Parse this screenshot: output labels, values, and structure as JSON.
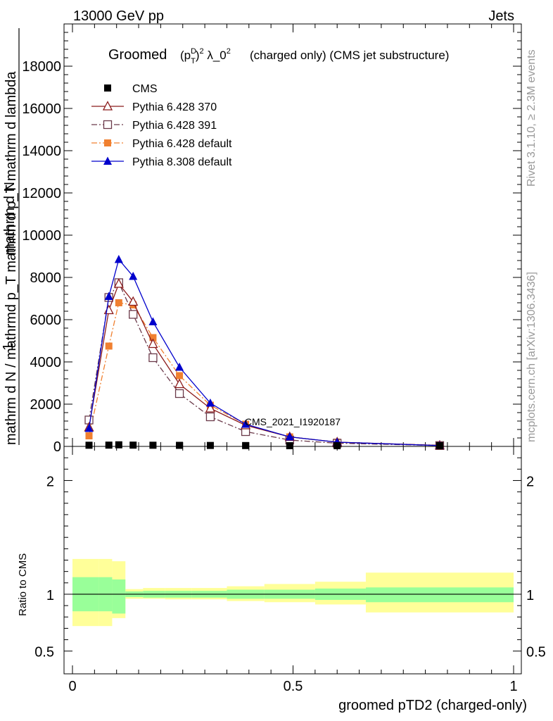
{
  "header": {
    "left": "13000 GeV pp",
    "right": "Jets"
  },
  "side_labels": {
    "rivet": "Rivet 3.1.10, ≥ 2.3M events",
    "mcplots": "mcplots.cern.ch [arXiv:1306.3436]"
  },
  "watermark": "CMS_2021_I1920187",
  "colors": {
    "cms": "#000000",
    "p370": "#8b1a1a",
    "p391": "#6b3a4a",
    "p6def": "#f08030",
    "p8def": "#0000cc",
    "band_inner": "#99ff99",
    "band_outer": "#ffff99"
  },
  "chart_data": [
    {
      "type": "line",
      "title_prefix": "Groomed",
      "title_suffix": "(charged only) (CMS jet substructure)",
      "ylabel_top": "mathrm d N",
      "ylabel_fraction_bottom": "mathrm d N / mathrmd p_T mathrm d p_T mathrm d lambda",
      "ylabel_one": "1",
      "ylim": [
        0,
        20000
      ],
      "xlim": [
        0,
        1
      ],
      "yticks": [
        0,
        2000,
        4000,
        6000,
        8000,
        10000,
        12000,
        14000,
        16000,
        18000
      ],
      "ytick_labels": [
        "0",
        "2000",
        "4000",
        "6000",
        "8000",
        "10000",
        "12000",
        "14000",
        "16000",
        "18000"
      ],
      "x": [
        0.0375,
        0.0825,
        0.105,
        0.1375,
        0.1825,
        0.2425,
        0.3125,
        0.3925,
        0.4925,
        0.6,
        0.8325
      ],
      "series": [
        {
          "name": "CMS",
          "key": "cms",
          "marker": "square-filled",
          "dash": "none",
          "values": [
            55,
            60,
            75,
            60,
            55,
            50,
            45,
            40,
            30,
            15,
            5
          ]
        },
        {
          "name": "Pythia 6.428 370",
          "key": "p370",
          "marker": "triangle-open",
          "dash": "solid",
          "values": [
            900,
            6450,
            7700,
            6850,
            4850,
            2950,
            1800,
            1000,
            450,
            200,
            45
          ]
        },
        {
          "name": "Pythia 6.428 391",
          "key": "p391",
          "marker": "square-open",
          "dash": "dashdot",
          "values": [
            1250,
            7050,
            7750,
            6250,
            4200,
            2500,
            1400,
            700,
            300,
            150,
            40
          ]
        },
        {
          "name": "Pythia 6.428 default",
          "key": "p6def",
          "marker": "square-filled",
          "dash": "dashdot",
          "values": [
            500,
            4750,
            6800,
            6700,
            5150,
            3350,
            1950,
            1050,
            450,
            200,
            55
          ]
        },
        {
          "name": "Pythia 8.308 default",
          "key": "p8def",
          "marker": "triangle-filled",
          "dash": "solid",
          "values": [
            850,
            7100,
            8850,
            8050,
            5900,
            3750,
            2050,
            1050,
            450,
            200,
            40
          ]
        }
      ]
    },
    {
      "type": "area",
      "ylabel": "Ratio to CMS",
      "xlabel": "groomed pTD2 (charged-only)",
      "ylim": [
        0.3,
        2.3
      ],
      "xlim": [
        0,
        1
      ],
      "yticks": [
        0.5,
        1,
        2
      ],
      "ytick_labels": [
        "0.5",
        "1",
        "2"
      ],
      "xticks": [
        0,
        0.5,
        1
      ],
      "xtick_labels": [
        "0",
        "0.5",
        "1"
      ],
      "reference": 1,
      "band_edges": [
        0,
        0.06,
        0.09,
        0.12,
        0.16,
        0.21,
        0.27,
        0.35,
        0.435,
        0.55,
        0.665,
        1.0
      ],
      "inner_band": [
        [
          0.85,
          1.15
        ],
        [
          0.85,
          1.15
        ],
        [
          0.83,
          1.13
        ],
        [
          0.975,
          1.025
        ],
        [
          0.97,
          1.03
        ],
        [
          0.97,
          1.03
        ],
        [
          0.97,
          1.03
        ],
        [
          0.96,
          1.04
        ],
        [
          0.96,
          1.04
        ],
        [
          0.95,
          1.05
        ],
        [
          0.93,
          1.06
        ]
      ],
      "outer_band": [
        [
          0.72,
          1.31
        ],
        [
          0.72,
          1.31
        ],
        [
          0.79,
          1.29
        ],
        [
          0.96,
          1.045
        ],
        [
          0.96,
          1.055
        ],
        [
          0.955,
          1.055
        ],
        [
          0.955,
          1.055
        ],
        [
          0.94,
          1.07
        ],
        [
          0.93,
          1.09
        ],
        [
          0.91,
          1.11
        ],
        [
          0.84,
          1.19
        ]
      ]
    }
  ]
}
